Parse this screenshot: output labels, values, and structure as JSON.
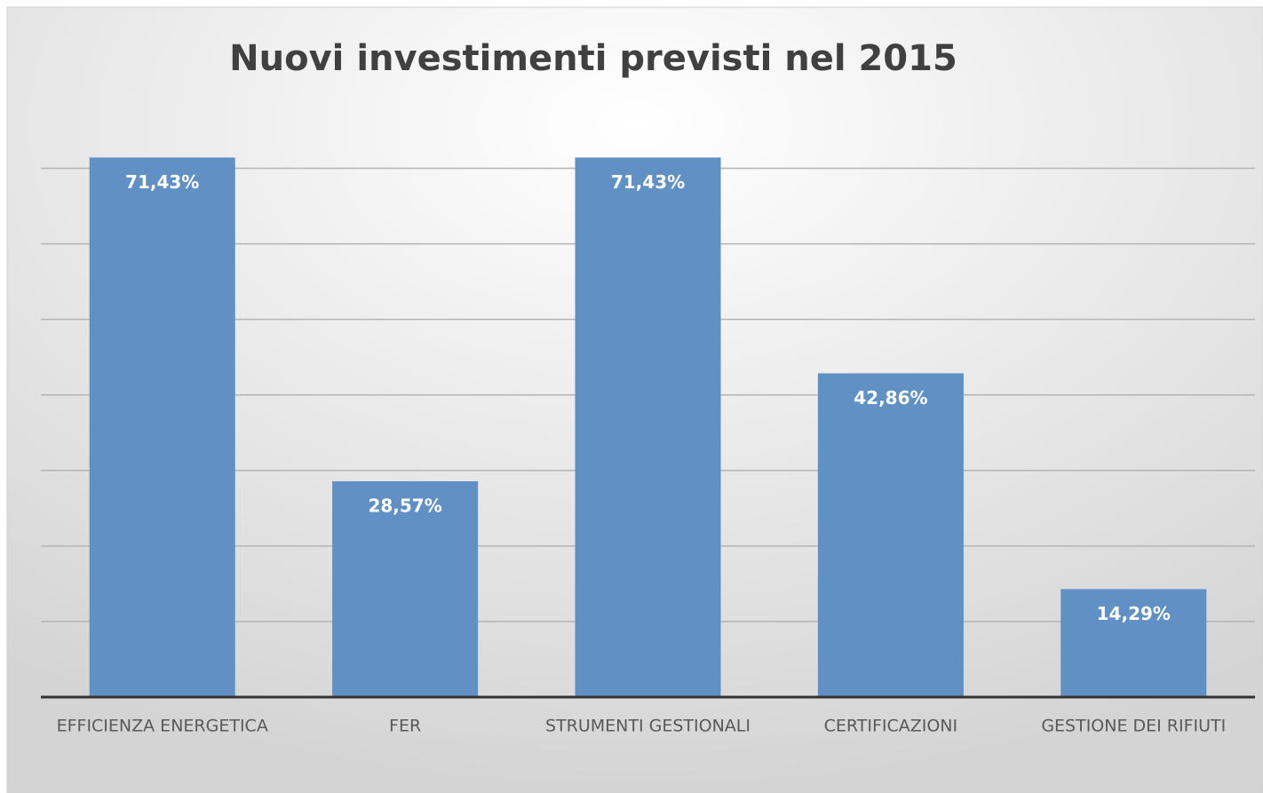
{
  "chart_data": {
    "type": "bar",
    "title": "Nuovi investimenti previsti nel 2015",
    "categories": [
      "EFFICIENZA ENERGETICA",
      "FER",
      "STRUMENTI GESTIONALI",
      "CERTIFICAZIONI",
      "GESTIONE DEI RIFIUTI"
    ],
    "values": [
      71.43,
      28.57,
      71.43,
      42.86,
      14.29
    ],
    "value_labels": [
      "71,43%",
      "28,57%",
      "71,43%",
      "42,86%",
      "14,29%"
    ],
    "color": "#6190c5",
    "ylim": [
      0,
      75
    ],
    "yticks": [
      0,
      10,
      20,
      30,
      40,
      50,
      60,
      70
    ],
    "grid": true
  }
}
